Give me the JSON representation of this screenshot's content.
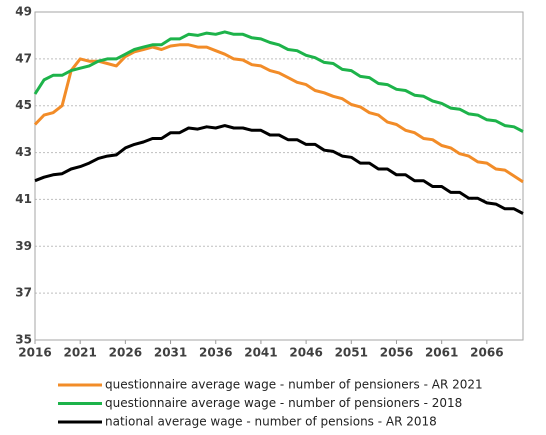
{
  "chart_data": {
    "type": "line",
    "x": [
      2016,
      2017,
      2018,
      2019,
      2020,
      2021,
      2022,
      2023,
      2024,
      2025,
      2026,
      2027,
      2028,
      2029,
      2030,
      2031,
      2032,
      2033,
      2034,
      2035,
      2036,
      2037,
      2038,
      2039,
      2040,
      2041,
      2042,
      2043,
      2044,
      2045,
      2046,
      2047,
      2048,
      2049,
      2050,
      2051,
      2052,
      2053,
      2054,
      2055,
      2056,
      2057,
      2058,
      2059,
      2060,
      2061,
      2062,
      2063,
      2064,
      2065,
      2066,
      2067,
      2068,
      2069,
      2070
    ],
    "series": [
      {
        "name": "questionnaire average wage - number of pensioners - AR 2021",
        "color": "#f28c28",
        "values": [
          44.2,
          44.6,
          44.7,
          45.0,
          46.5,
          47.0,
          46.9,
          46.9,
          46.8,
          46.7,
          47.1,
          47.3,
          47.4,
          47.5,
          47.4,
          47.55,
          47.6,
          47.6,
          47.5,
          47.5,
          47.35,
          47.2,
          47.0,
          46.95,
          46.75,
          46.7,
          46.5,
          46.4,
          46.2,
          46.0,
          45.9,
          45.65,
          45.55,
          45.4,
          45.3,
          45.05,
          44.95,
          44.7,
          44.6,
          44.3,
          44.2,
          43.95,
          43.85,
          43.6,
          43.55,
          43.3,
          43.2,
          42.95,
          42.85,
          42.6,
          42.55,
          42.3,
          42.25,
          42.0,
          41.75
        ]
      },
      {
        "name": "questionnaire average wage - number of pensioners - 2018",
        "color": "#1db34a",
        "values": [
          45.5,
          46.1,
          46.3,
          46.3,
          46.5,
          46.6,
          46.7,
          46.9,
          47.0,
          47.0,
          47.2,
          47.4,
          47.5,
          47.6,
          47.6,
          47.85,
          47.85,
          48.05,
          48.0,
          48.1,
          48.05,
          48.15,
          48.05,
          48.05,
          47.9,
          47.85,
          47.7,
          47.6,
          47.4,
          47.35,
          47.15,
          47.05,
          46.85,
          46.8,
          46.55,
          46.5,
          46.25,
          46.2,
          45.95,
          45.9,
          45.7,
          45.65,
          45.45,
          45.4,
          45.2,
          45.1,
          44.9,
          44.85,
          44.65,
          44.6,
          44.4,
          44.35,
          44.15,
          44.1,
          43.9
        ]
      },
      {
        "name": "national average wage - number of pensions - AR 2018",
        "color": "#000000",
        "values": [
          41.8,
          41.95,
          42.05,
          42.1,
          42.3,
          42.4,
          42.55,
          42.75,
          42.85,
          42.9,
          43.2,
          43.35,
          43.45,
          43.6,
          43.6,
          43.85,
          43.85,
          44.05,
          44.0,
          44.1,
          44.05,
          44.15,
          44.05,
          44.05,
          43.95,
          43.95,
          43.75,
          43.75,
          43.55,
          43.55,
          43.35,
          43.35,
          43.1,
          43.05,
          42.85,
          42.8,
          42.55,
          42.55,
          42.3,
          42.3,
          42.05,
          42.05,
          41.8,
          41.8,
          41.55,
          41.55,
          41.3,
          41.3,
          41.05,
          41.05,
          40.85,
          40.8,
          40.6,
          40.6,
          40.4
        ]
      }
    ],
    "xlim": [
      2016,
      2070
    ],
    "xticks": [
      2016,
      2021,
      2026,
      2031,
      2036,
      2041,
      2046,
      2051,
      2056,
      2061,
      2066
    ],
    "ylim": [
      35,
      49
    ],
    "yticks": [
      35,
      37,
      39,
      41,
      43,
      45,
      47,
      49
    ],
    "grid": true
  }
}
